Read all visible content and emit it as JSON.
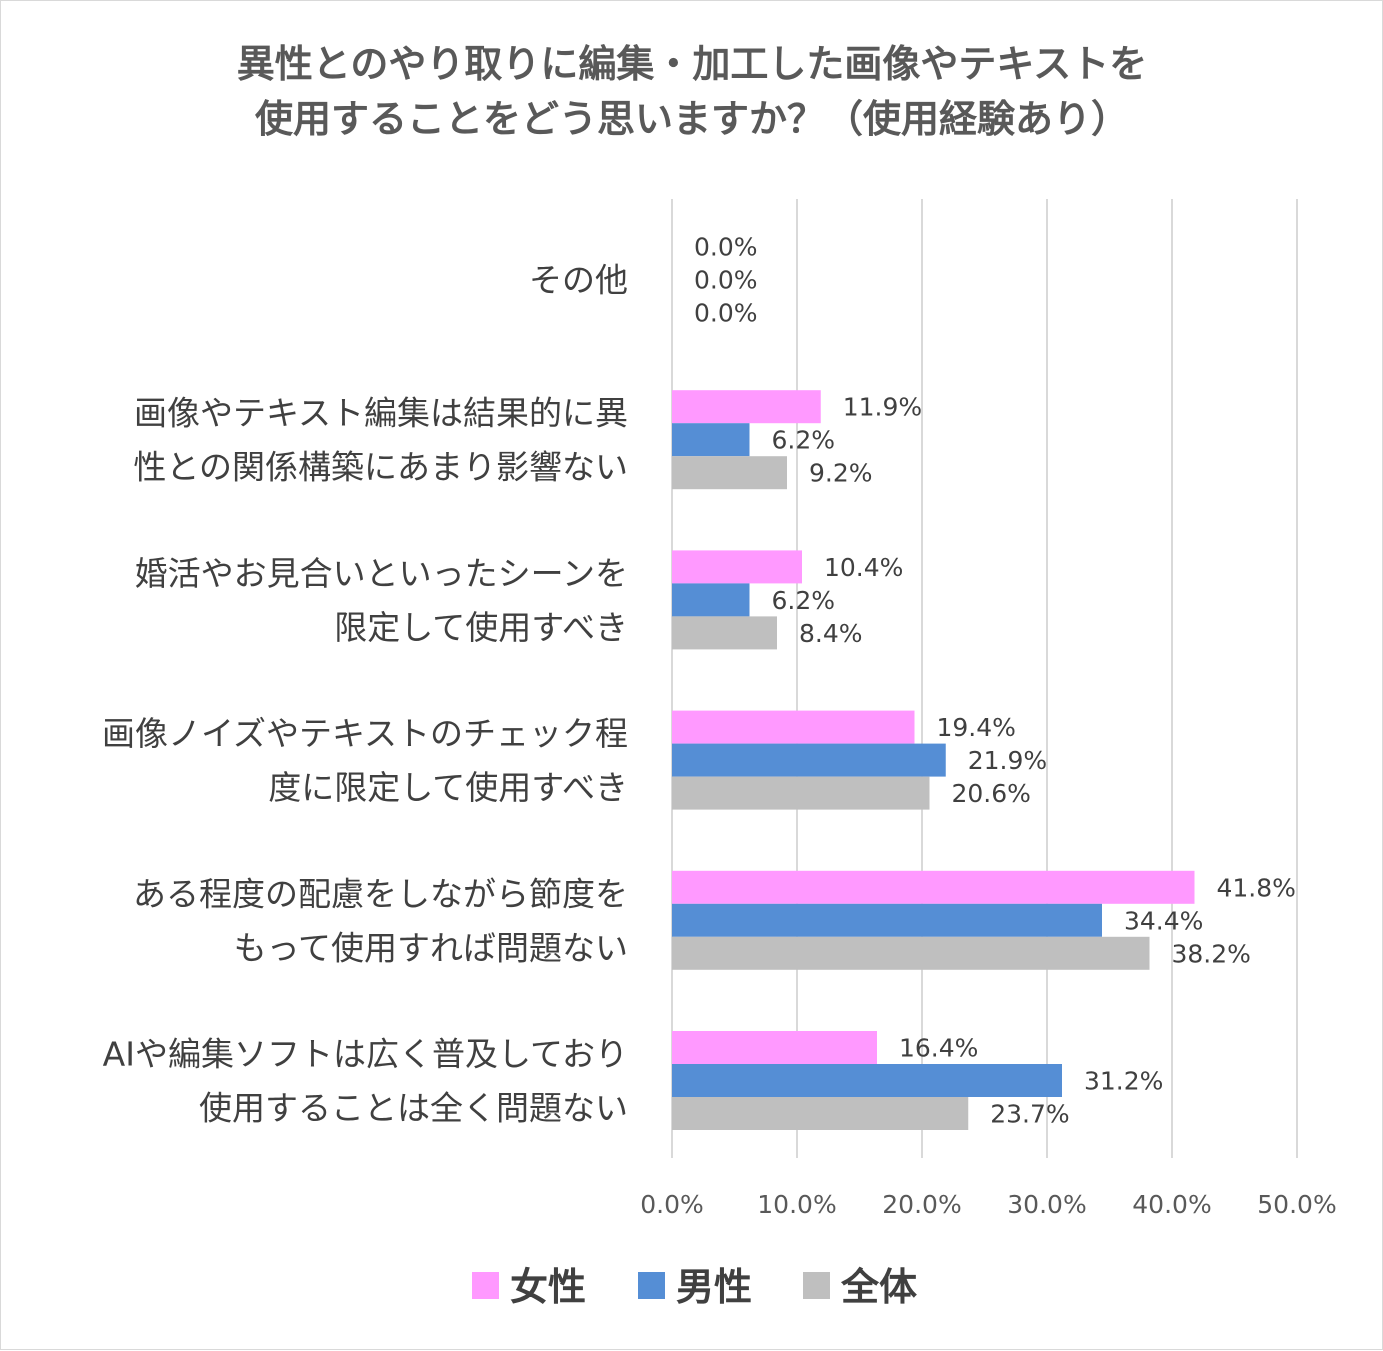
{
  "chart_data": {
    "type": "bar",
    "orientation": "horizontal",
    "title_lines": [
      "異性とのやり取りに編集・加工した画像やテキストを",
      "使用することをどう思いますか？（使用経験あり）"
    ],
    "categories": [
      {
        "lines": [
          "その他"
        ]
      },
      {
        "lines": [
          "画像やテキスト編集は結果的に異",
          "性との関係構築にあまり影響ない"
        ]
      },
      {
        "lines": [
          "婚活やお見合いといったシーンを",
          "限定して使用すべき"
        ]
      },
      {
        "lines": [
          "画像ノイズやテキストのチェック程",
          "度に限定して使用すべき"
        ]
      },
      {
        "lines": [
          "ある程度の配慮をしながら節度を",
          "もって使用すれば問題ない"
        ]
      },
      {
        "lines": [
          "AIや編集ソフトは広く普及しており",
          "使用することは全く問題ない"
        ]
      }
    ],
    "series": [
      {
        "name": "女性",
        "color": "#ff99ff",
        "values": [
          0.0,
          11.9,
          10.4,
          19.4,
          41.8,
          16.4
        ],
        "labels": [
          "0.0%",
          "11.9%",
          "10.4%",
          "19.4%",
          "41.8%",
          "16.4%"
        ]
      },
      {
        "name": "男性",
        "color": "#558ed5",
        "values": [
          0.0,
          6.2,
          6.2,
          21.9,
          34.4,
          31.2
        ],
        "labels": [
          "0.0%",
          "6.2%",
          "6.2%",
          "21.9%",
          "34.4%",
          "31.2%"
        ]
      },
      {
        "name": "全体",
        "color": "#bfbfbf",
        "values": [
          0.0,
          9.2,
          8.4,
          20.6,
          38.2,
          23.7
        ],
        "labels": [
          "0.0%",
          "9.2%",
          "8.4%",
          "20.6%",
          "38.2%",
          "23.7%"
        ]
      }
    ],
    "xlim": [
      0,
      50
    ],
    "xticks": [
      0,
      10,
      20,
      30,
      40,
      50
    ],
    "xtick_labels": [
      "0.0%",
      "10.0%",
      "20.0%",
      "30.0%",
      "40.0%",
      "50.0%"
    ],
    "grid": true,
    "legend_position": "bottom"
  }
}
